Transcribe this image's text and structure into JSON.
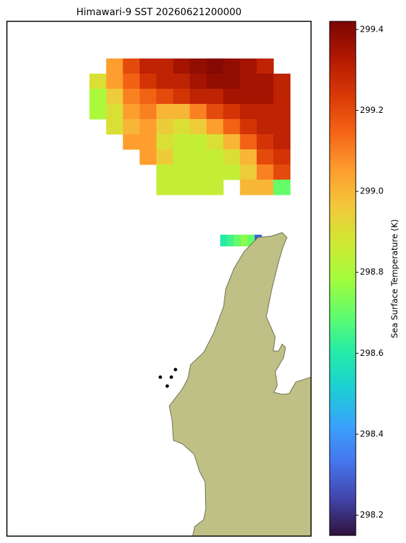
{
  "map": {
    "title": "Himawari-9 SST 20260621200000",
    "colorbar": {
      "label": "Sea Surface Temperature (K)",
      "colormap": "turbo",
      "lim": [
        298.15,
        299.42
      ],
      "ticks": [
        298.2,
        298.4,
        298.6,
        298.8,
        {
          "value": 299,
          "label": "299.0"
        },
        299.2,
        299.4
      ]
    },
    "sst_grid": [
      [
        null,
        299.05,
        299.2,
        299.3,
        299.3,
        299.35,
        299.38,
        299.4,
        299.38,
        299.35,
        299.3,
        null
      ],
      [
        298.9,
        299.05,
        299.15,
        299.25,
        299.3,
        299.3,
        299.35,
        299.38,
        299.38,
        299.35,
        299.35,
        299.3
      ],
      [
        298.8,
        298.95,
        299.1,
        299.15,
        299.2,
        299.25,
        299.3,
        299.3,
        299.35,
        299.35,
        299.35,
        299.3
      ],
      [
        298.8,
        298.9,
        299.05,
        299.1,
        299.0,
        299.0,
        299.1,
        299.2,
        299.25,
        299.3,
        299.3,
        299.3
      ],
      [
        null,
        298.9,
        299.0,
        299.05,
        298.95,
        298.9,
        298.95,
        299.05,
        299.15,
        299.25,
        299.3,
        299.3
      ],
      [
        null,
        null,
        299.05,
        299.05,
        298.9,
        298.85,
        298.85,
        298.9,
        299.0,
        299.15,
        299.25,
        299.3
      ],
      [
        null,
        null,
        null,
        299.05,
        298.95,
        298.85,
        298.85,
        298.85,
        298.9,
        299.0,
        299.2,
        299.25
      ],
      [
        null,
        null,
        null,
        null,
        298.85,
        298.85,
        298.85,
        298.85,
        298.85,
        298.95,
        299.1,
        299.2
      ],
      [
        null,
        null,
        null,
        null,
        298.85,
        298.85,
        298.85,
        298.85,
        null,
        299.0,
        299.0,
        298.7
      ]
    ],
    "sst_patch": [
      298.6,
      298.65,
      298.7,
      298.75,
      298.7,
      298.3
    ]
  }
}
